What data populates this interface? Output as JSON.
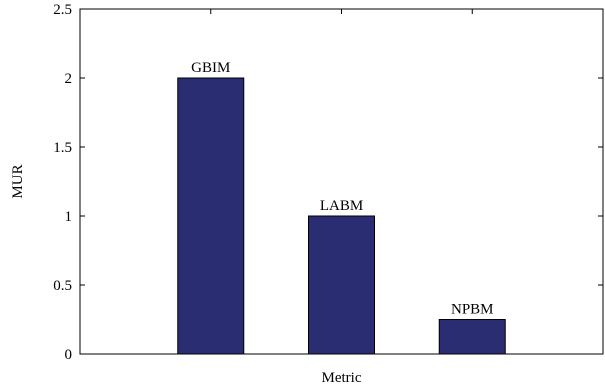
{
  "chart_data": {
    "type": "bar",
    "categories": [
      "GBIM",
      "LABM",
      "NPBM"
    ],
    "values": [
      2.0,
      1.0,
      0.25
    ],
    "xlabel": "Metric",
    "ylabel": "MUR",
    "ylim": [
      0,
      2.5
    ],
    "yticks": [
      "0",
      "0.5",
      "1",
      "1.5",
      "2",
      "2.5"
    ],
    "grid": false,
    "bar_color": "#2b2d73"
  }
}
